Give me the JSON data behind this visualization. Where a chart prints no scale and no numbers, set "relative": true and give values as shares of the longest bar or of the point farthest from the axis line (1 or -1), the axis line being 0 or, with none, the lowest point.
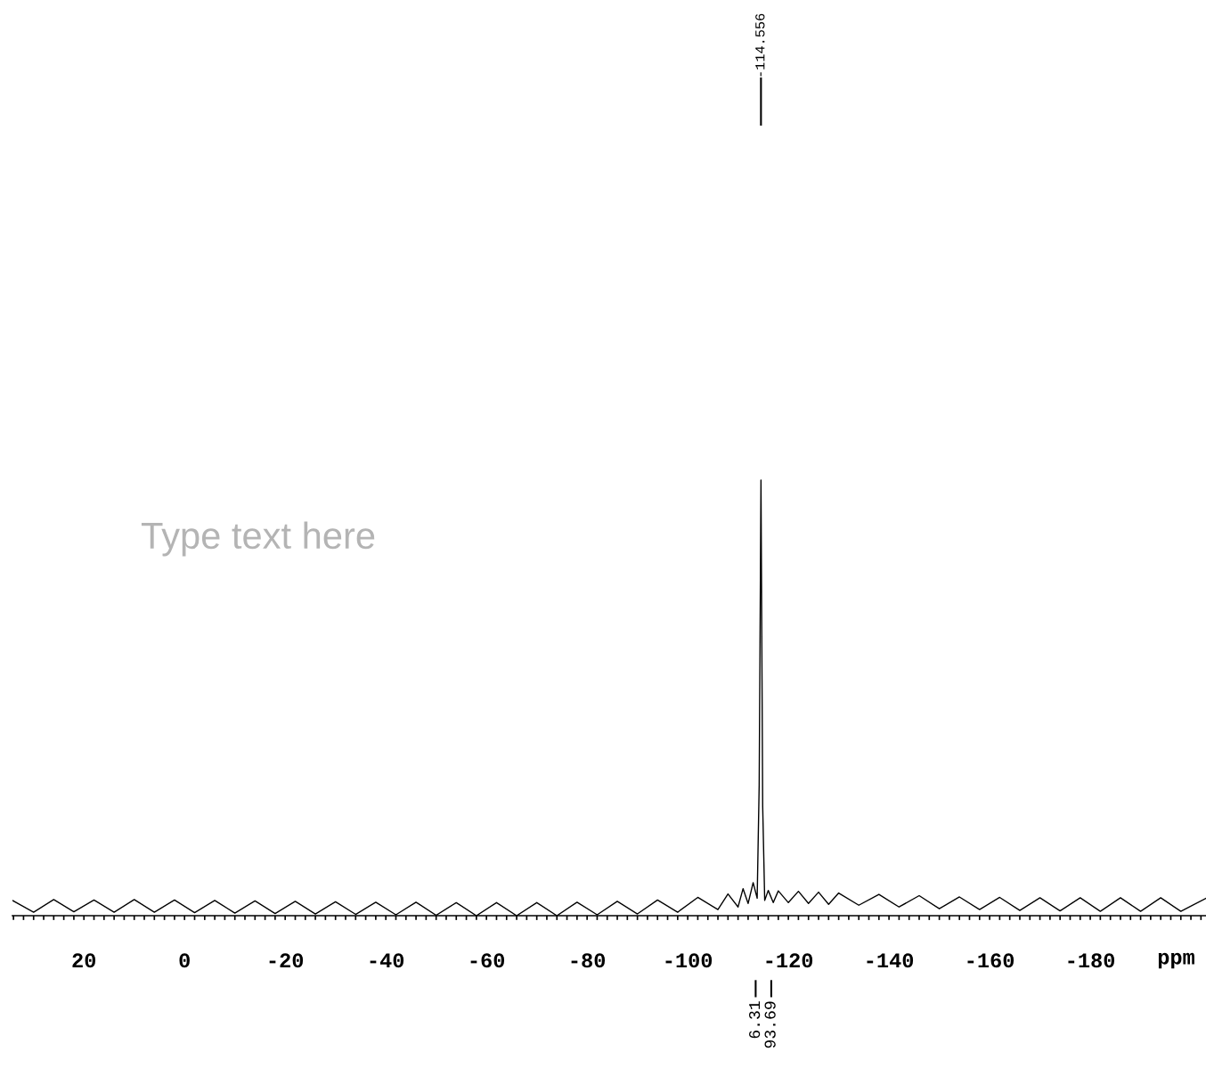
{
  "chart_data": {
    "type": "line",
    "relative": true,
    "xlabel": "ppm",
    "x": [
      34.2,
      30,
      26,
      22,
      18,
      14,
      10,
      6,
      2,
      -2,
      -6,
      -10,
      -14,
      -18,
      -22,
      -26,
      -30,
      -34,
      -38,
      -42,
      -46,
      -50,
      -54,
      -58,
      -62,
      -66,
      -70,
      -74,
      -78,
      -82,
      -86,
      -90,
      -94,
      -98,
      -102,
      -106,
      -108,
      -110,
      -111,
      -112,
      -113,
      -113.8,
      -114.2,
      -114.556,
      -114.9,
      -115.3,
      -116,
      -117,
      -118,
      -120,
      -122,
      -124,
      -126,
      -128,
      -130,
      -134,
      -138,
      -142,
      -146,
      -150,
      -154,
      -158,
      -162,
      -166,
      -170,
      -174,
      -178,
      -182,
      -186,
      -190,
      -194,
      -198,
      -203
    ],
    "values": [
      0.035,
      0.008,
      0.037,
      0.009,
      0.036,
      0.008,
      0.037,
      0.008,
      0.036,
      0.007,
      0.035,
      0.006,
      0.034,
      0.005,
      0.033,
      0.004,
      0.032,
      0.003,
      0.031,
      0.002,
      0.031,
      0.001,
      0.03,
      0.0,
      0.03,
      0.0,
      0.03,
      0.0,
      0.031,
      0.002,
      0.033,
      0.004,
      0.036,
      0.008,
      0.042,
      0.014,
      0.05,
      0.02,
      0.062,
      0.028,
      0.076,
      0.04,
      0.3,
      1.0,
      0.25,
      0.035,
      0.058,
      0.03,
      0.057,
      0.03,
      0.056,
      0.028,
      0.054,
      0.026,
      0.052,
      0.024,
      0.049,
      0.02,
      0.046,
      0.016,
      0.043,
      0.014,
      0.042,
      0.012,
      0.041,
      0.011,
      0.041,
      0.01,
      0.041,
      0.01,
      0.041,
      0.01,
      0.04
    ],
    "color": "#000000",
    "xlim": [
      34.2,
      -203
    ],
    "xticks": [
      {
        "value": 34,
        "label": null
      },
      {
        "value": 32,
        "label": null
      },
      {
        "value": 30,
        "label": null
      },
      {
        "value": 28,
        "label": null
      },
      {
        "value": 26,
        "label": null
      },
      {
        "value": 24,
        "label": null
      },
      {
        "value": 22,
        "label": null
      },
      20,
      {
        "value": 18,
        "label": null
      },
      {
        "value": 16,
        "label": null
      },
      {
        "value": 14,
        "label": null
      },
      {
        "value": 12,
        "label": null
      },
      {
        "value": 10,
        "label": null
      },
      {
        "value": 8,
        "label": null
      },
      {
        "value": 6,
        "label": null
      },
      {
        "value": 4,
        "label": null
      },
      {
        "value": 2,
        "label": null
      },
      0,
      {
        "value": -2,
        "label": null
      },
      {
        "value": -4,
        "label": null
      },
      {
        "value": -6,
        "label": null
      },
      {
        "value": -8,
        "label": null
      },
      {
        "value": -10,
        "label": null
      },
      {
        "value": -12,
        "label": null
      },
      {
        "value": -14,
        "label": null
      },
      {
        "value": -16,
        "label": null
      },
      {
        "value": -18,
        "label": null
      },
      -20,
      {
        "value": -22,
        "label": null
      },
      {
        "value": -24,
        "label": null
      },
      {
        "value": -26,
        "label": null
      },
      {
        "value": -28,
        "label": null
      },
      {
        "value": -30,
        "label": null
      },
      {
        "value": -32,
        "label": null
      },
      {
        "value": -34,
        "label": null
      },
      {
        "value": -36,
        "label": null
      },
      {
        "value": -38,
        "label": null
      },
      -40,
      {
        "value": -42,
        "label": null
      },
      {
        "value": -44,
        "label": null
      },
      {
        "value": -46,
        "label": null
      },
      {
        "value": -48,
        "label": null
      },
      {
        "value": -50,
        "label": null
      },
      {
        "value": -52,
        "label": null
      },
      {
        "value": -54,
        "label": null
      },
      {
        "value": -56,
        "label": null
      },
      {
        "value": -58,
        "label": null
      },
      -60,
      {
        "value": -62,
        "label": null
      },
      {
        "value": -64,
        "label": null
      },
      {
        "value": -66,
        "label": null
      },
      {
        "value": -68,
        "label": null
      },
      {
        "value": -70,
        "label": null
      },
      {
        "value": -72,
        "label": null
      },
      {
        "value": -74,
        "label": null
      },
      {
        "value": -76,
        "label": null
      },
      {
        "value": -78,
        "label": null
      },
      -80,
      {
        "value": -82,
        "label": null
      },
      {
        "value": -84,
        "label": null
      },
      {
        "value": -86,
        "label": null
      },
      {
        "value": -88,
        "label": null
      },
      {
        "value": -90,
        "label": null
      },
      {
        "value": -92,
        "label": null
      },
      {
        "value": -94,
        "label": null
      },
      {
        "value": -96,
        "label": null
      },
      {
        "value": -98,
        "label": null
      },
      -100,
      {
        "value": -102,
        "label": null
      },
      {
        "value": -104,
        "label": null
      },
      {
        "value": -106,
        "label": null
      },
      {
        "value": -108,
        "label": null
      },
      {
        "value": -110,
        "label": null
      },
      {
        "value": -112,
        "label": null
      },
      {
        "value": -114,
        "label": null
      },
      {
        "value": -116,
        "label": null
      },
      {
        "value": -118,
        "label": null
      },
      -120,
      {
        "value": -122,
        "label": null
      },
      {
        "value": -124,
        "label": null
      },
      {
        "value": -126,
        "label": null
      },
      {
        "value": -128,
        "label": null
      },
      {
        "value": -130,
        "label": null
      },
      {
        "value": -132,
        "label": null
      },
      {
        "value": -134,
        "label": null
      },
      {
        "value": -136,
        "label": null
      },
      {
        "value": -138,
        "label": null
      },
      -140,
      {
        "value": -142,
        "label": null
      },
      {
        "value": -144,
        "label": null
      },
      {
        "value": -146,
        "label": null
      },
      {
        "value": -148,
        "label": null
      },
      {
        "value": -150,
        "label": null
      },
      {
        "value": -152,
        "label": null
      },
      {
        "value": -154,
        "label": null
      },
      {
        "value": -156,
        "label": null
      },
      {
        "value": -158,
        "label": null
      },
      -160,
      {
        "value": -162,
        "label": null
      },
      {
        "value": -164,
        "label": null
      },
      {
        "value": -166,
        "label": null
      },
      {
        "value": -168,
        "label": null
      },
      {
        "value": -170,
        "label": null
      },
      {
        "value": -172,
        "label": null
      },
      {
        "value": -174,
        "label": null
      },
      {
        "value": -176,
        "label": null
      },
      {
        "value": -178,
        "label": null
      },
      -180,
      {
        "value": -182,
        "label": null
      },
      {
        "value": -184,
        "label": null
      },
      {
        "value": -186,
        "label": null
      },
      {
        "value": -188,
        "label": null
      },
      {
        "value": -190,
        "label": null
      },
      {
        "value": -192,
        "label": null
      },
      {
        "value": -194,
        "label": null
      },
      {
        "value": -196,
        "label": null
      },
      {
        "value": -198,
        "label": null
      },
      {
        "value": -200,
        "label": null
      },
      {
        "value": -202,
        "label": null
      }
    ],
    "grid": false,
    "annotations": [
      "-114.556",
      "Type text here",
      "6.31",
      "93.69"
    ]
  }
}
